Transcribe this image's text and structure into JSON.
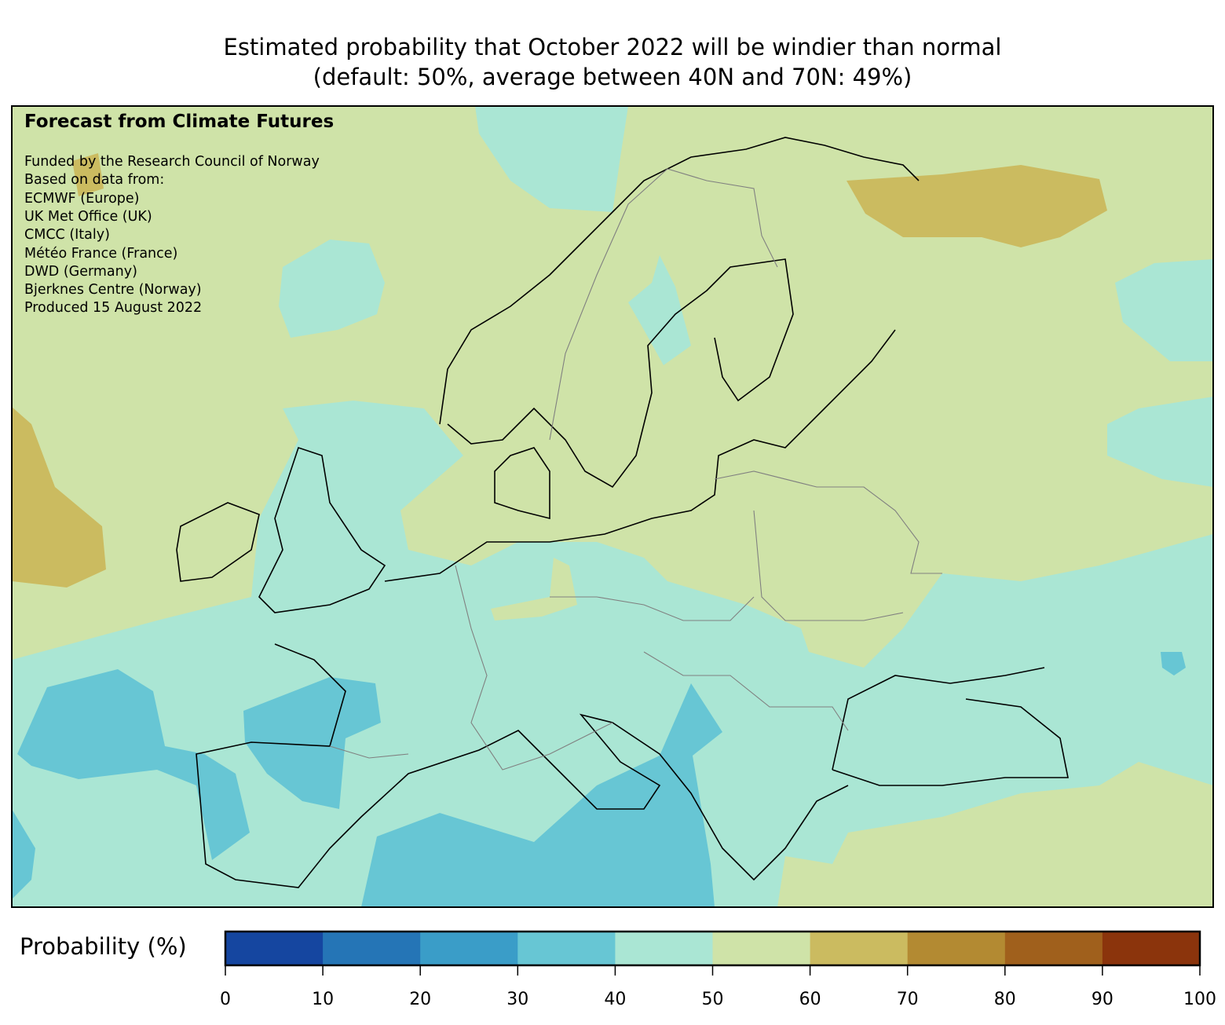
{
  "title": {
    "line1": "Estimated probability that October 2022 will be windier than normal",
    "line2": "(default: 50%, average between 40N and 70N: 49%)"
  },
  "info": {
    "heading": "Forecast from Climate Futures",
    "lines": [
      "Funded by the Research Council of Norway",
      "Based on data from:",
      "ECMWF (Europe)",
      "UK Met Office (UK)",
      "CMCC (Italy)",
      "Météo France (France)",
      "DWD (Germany)",
      "Bjerknes Centre (Norway)",
      "Produced 15 August 2022"
    ]
  },
  "colorbar": {
    "label": "Probability (%)",
    "ticks": [
      "0",
      "10",
      "20",
      "30",
      "40",
      "50",
      "60",
      "70",
      "80",
      "90",
      "100"
    ],
    "colors": [
      "#1546a0",
      "#2575b6",
      "#3a9dc8",
      "#67c6d4",
      "#aae6d4",
      "#cfe3a8",
      "#cbbb60",
      "#b38a32",
      "#a0601c",
      "#8b340c"
    ]
  }
}
